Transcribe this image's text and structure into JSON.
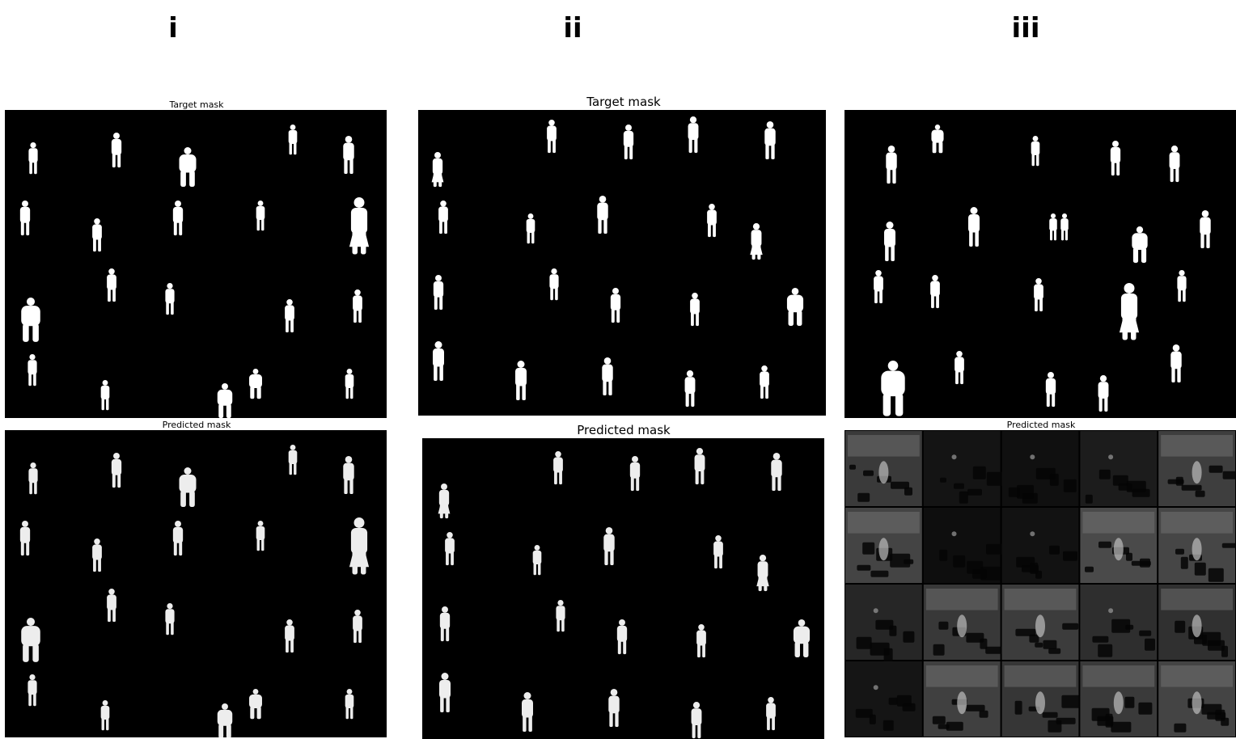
{
  "columns": [
    {
      "label": "i",
      "top_title": "Target mask",
      "bottom_title": "Predicted mask"
    },
    {
      "label": "ii",
      "top_title": "Target mask",
      "bottom_title": "Predicted mask"
    },
    {
      "label": "iii",
      "top_title": "",
      "bottom_title": "Predicted mask"
    }
  ],
  "colors": {
    "background": "#ffffff",
    "mask_background": "#000000",
    "silhouette": "#ffffff",
    "grid_tile_base": "#1a1a1a"
  },
  "icons": {
    "silhouette": "person-silhouette-icon"
  }
}
